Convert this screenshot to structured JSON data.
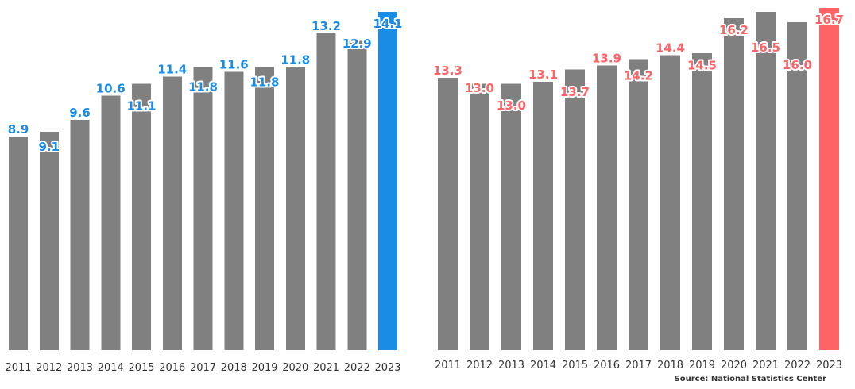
{
  "chart_data": [
    {
      "type": "bar",
      "categories": [
        "2011",
        "2012",
        "2013",
        "2014",
        "2015",
        "2016",
        "2017",
        "2018",
        "2019",
        "2020",
        "2021",
        "2022",
        "2023"
      ],
      "values": [
        8.9,
        9.1,
        9.6,
        10.6,
        11.1,
        11.4,
        11.8,
        11.6,
        11.8,
        11.8,
        13.2,
        12.9,
        14.1
      ],
      "value_labels": [
        "8.9",
        "9.1",
        "9.6",
        "10.6",
        "11.1",
        "11.4",
        "11.8",
        "11.6",
        "11.8",
        "11.8",
        "13.2",
        "12.9",
        "14.1"
      ],
      "ylim": [
        0,
        14.1
      ],
      "grid": false,
      "bar_color": "#808080",
      "highlight_index": 12,
      "highlight_color": "#1a8ce6",
      "label_color": "#1a8ce6"
    },
    {
      "type": "bar",
      "categories": [
        "2011",
        "2012",
        "2013",
        "2014",
        "2015",
        "2016",
        "2017",
        "2018",
        "2019",
        "2020",
        "2021",
        "2022",
        "2023"
      ],
      "values": [
        13.3,
        13.0,
        13.0,
        13.1,
        13.7,
        13.9,
        14.2,
        14.4,
        14.5,
        16.2,
        16.5,
        16.0,
        16.7
      ],
      "value_labels": [
        "13.3",
        "13.0",
        "13.0",
        "13.1",
        "13.7",
        "13.9",
        "14.2",
        "14.4",
        "14.5",
        "16.2",
        "16.5",
        "16.0",
        "16.7"
      ],
      "ylim": [
        0,
        16.7
      ],
      "grid": false,
      "bar_color": "#808080",
      "highlight_index": 12,
      "highlight_color": "#ff6366",
      "label_color": "#ff6366"
    }
  ],
  "footer": {
    "source": "Source: National Statistics Center"
  }
}
